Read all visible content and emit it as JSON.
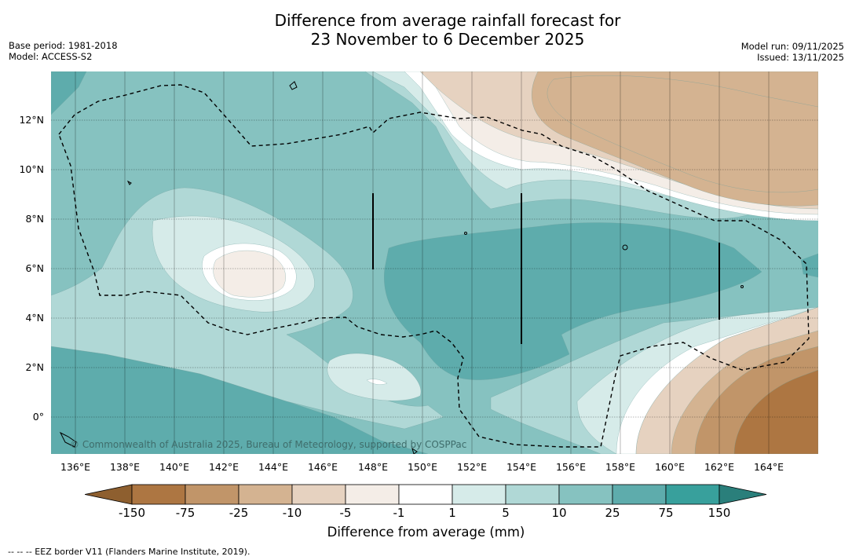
{
  "title": {
    "line1": "Difference from average rainfall forecast for",
    "line2": "23 November to 6 December 2025"
  },
  "meta": {
    "base_period": "Base period: 1981-2018",
    "model": "Model: ACCESS-S2",
    "model_run": "Model run: 09/11/2025",
    "issued": "Issued: 13/11/2025"
  },
  "map": {
    "copyright": "© Commonwealth of Australia 2025, Bureau of Meteorology, supported by COSPPac",
    "lat_ticks": [
      "12°N",
      "10°N",
      "8°N",
      "6°N",
      "4°N",
      "2°N",
      "0°"
    ],
    "lon_ticks": [
      "136°E",
      "138°E",
      "140°E",
      "142°E",
      "144°E",
      "146°E",
      "148°E",
      "150°E",
      "152°E",
      "154°E",
      "156°E",
      "158°E",
      "160°E",
      "162°E",
      "164°E"
    ]
  },
  "colorbar": {
    "title": "Difference from average (mm)",
    "labels": [
      "-150",
      "-75",
      "-25",
      "-10",
      "-5",
      "-1",
      "1",
      "5",
      "10",
      "25",
      "75",
      "150"
    ],
    "colors": {
      "lt_m150": "#8e5f2f",
      "m150_m75": "#ad7642",
      "m75_m25": "#c19569",
      "m25_m10": "#d4b391",
      "m10_m5": "#e6d2c0",
      "m5_m1": "#f4ede7",
      "m1_1": "#ffffff",
      "1_5": "#d6ebe9",
      "5_10": "#b0d8d6",
      "10_25": "#86c2c0",
      "25_75": "#5eacac",
      "75_150": "#38a09c",
      "gt_150": "#2a7f7b"
    }
  },
  "footnote": "--  --  -- EEZ border V11 (Flanders Marine Institute, 2019)."
}
